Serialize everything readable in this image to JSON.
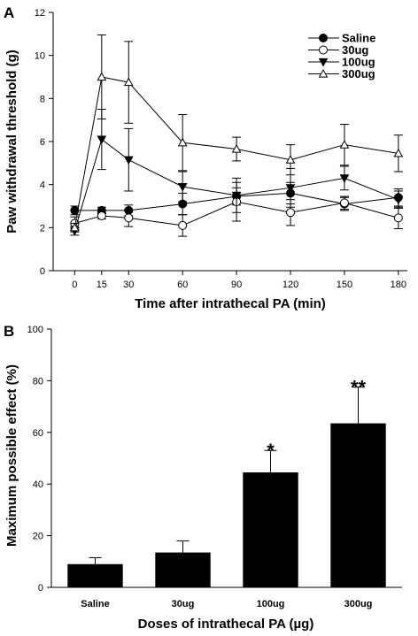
{
  "chart_data": [
    {
      "panel_label": "A",
      "type": "line",
      "xlabel": "Time after intrathecal PA (min)",
      "ylabel": "Paw withdrawal threshold (g)",
      "x": [
        0,
        15,
        30,
        60,
        90,
        120,
        150,
        180
      ],
      "xticks": [
        "0",
        "15",
        "30",
        "60",
        "90",
        "120",
        "150",
        "180"
      ],
      "yticks": [
        "0",
        "2",
        "4",
        "6",
        "8",
        "10",
        "12"
      ],
      "ylim": [
        0,
        12
      ],
      "legend_position": "top-right",
      "series": [
        {
          "name": "Saline",
          "marker": "filled-circle",
          "values": [
            2.8,
            2.8,
            2.8,
            3.1,
            3.45,
            3.6,
            3.1,
            3.4
          ],
          "errors": [
            0.2,
            0.15,
            0.25,
            0.5,
            0.4,
            0.5,
            0.3,
            0.4
          ]
        },
        {
          "name": "30ug",
          "marker": "open-circle",
          "values": [
            2.2,
            2.55,
            2.45,
            2.1,
            3.2,
            2.7,
            3.15,
            2.45
          ],
          "errors": [
            0.3,
            0.15,
            0.4,
            0.5,
            0.9,
            0.6,
            0.3,
            0.5
          ]
        },
        {
          "name": "100ug",
          "marker": "filled-triangle-down",
          "values": [
            1.85,
            6.1,
            5.15,
            3.9,
            3.5,
            3.85,
            4.3,
            3.3
          ],
          "errors": [
            0.2,
            1.4,
            1.45,
            0.7,
            0.8,
            0.9,
            0.55,
            0.4
          ]
        },
        {
          "name": "300ug",
          "marker": "open-triangle-up",
          "values": [
            2.0,
            9.0,
            8.75,
            5.95,
            5.65,
            5.15,
            5.85,
            5.45
          ],
          "errors": [
            0.2,
            1.95,
            1.9,
            1.3,
            0.55,
            0.7,
            0.95,
            0.85
          ]
        }
      ]
    },
    {
      "panel_label": "B",
      "type": "bar",
      "xlabel": "Doses of intrathecal PA (µg)",
      "ylabel": "Maximum possible effect (%)",
      "categories": [
        "Saline",
        "30ug",
        "100ug",
        "300ug"
      ],
      "values": [
        9,
        13.5,
        44.5,
        63.5
      ],
      "errors": [
        2.5,
        4.5,
        8.5,
        14
      ],
      "annotations": [
        "",
        "",
        "*",
        "**"
      ],
      "yticks": [
        "0",
        "20",
        "40",
        "60",
        "80",
        "100"
      ],
      "ylim": [
        0,
        100
      ],
      "bar_color": "#000000"
    }
  ]
}
